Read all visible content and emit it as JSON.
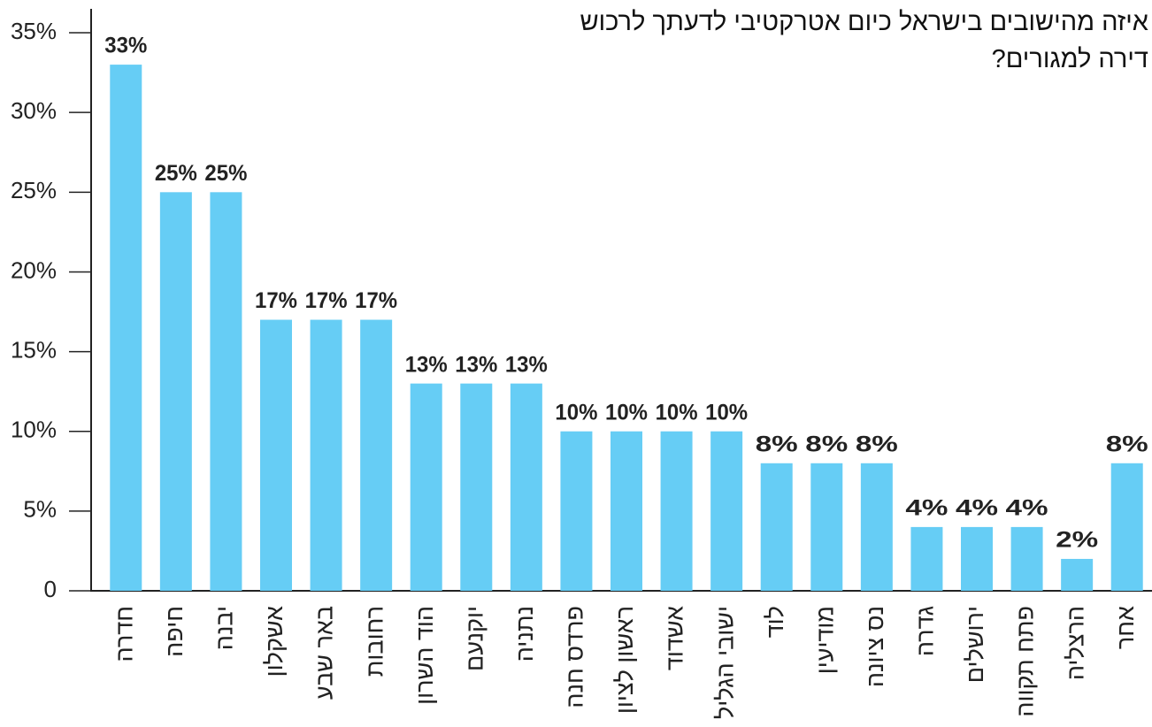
{
  "chart_data": {
    "type": "bar",
    "title": "איזה מהישובים בישראל כיום אטרקטיבי לדעתך לרכוש דירה למגורים?",
    "categories": [
      "חדרה",
      "חיפה",
      "יבנה",
      "אשקלון",
      "באר שבע",
      "רחובות",
      "הוד השרון",
      "יוקנעם",
      "נתניה",
      "פרדס חנה",
      "ראשון לציון",
      "אשדוד",
      "ישובי הגליל",
      "לוד",
      "מודיעין",
      "נס ציונה",
      "גדרה",
      "ירושלים",
      "פתח תקווה",
      "הרצליה",
      "אחר"
    ],
    "values": [
      33,
      25,
      25,
      17,
      17,
      17,
      13,
      13,
      13,
      10,
      10,
      10,
      10,
      8,
      8,
      8,
      4,
      4,
      4,
      2,
      8
    ],
    "value_labels": [
      "33%",
      "25%",
      "25%",
      "17%",
      "17%",
      "17%",
      "13%",
      "13%",
      "13%",
      "10%",
      "10%",
      "10%",
      "10%",
      "8%",
      "8%",
      "8%",
      "4%",
      "4%",
      "4%",
      "2%",
      "8%"
    ],
    "color": "#66cdf5",
    "ylim": [
      0,
      36.5
    ],
    "yticks": [
      0,
      {
        "value": 5,
        "label": "5%"
      },
      {
        "value": 10,
        "label": "10%"
      },
      {
        "value": 15,
        "label": "15%"
      },
      {
        "value": 20,
        "label": "20%"
      },
      {
        "value": 25,
        "label": "25%"
      },
      {
        "value": 30,
        "label": "30%"
      },
      {
        "value": 35,
        "label": "35%"
      }
    ]
  }
}
